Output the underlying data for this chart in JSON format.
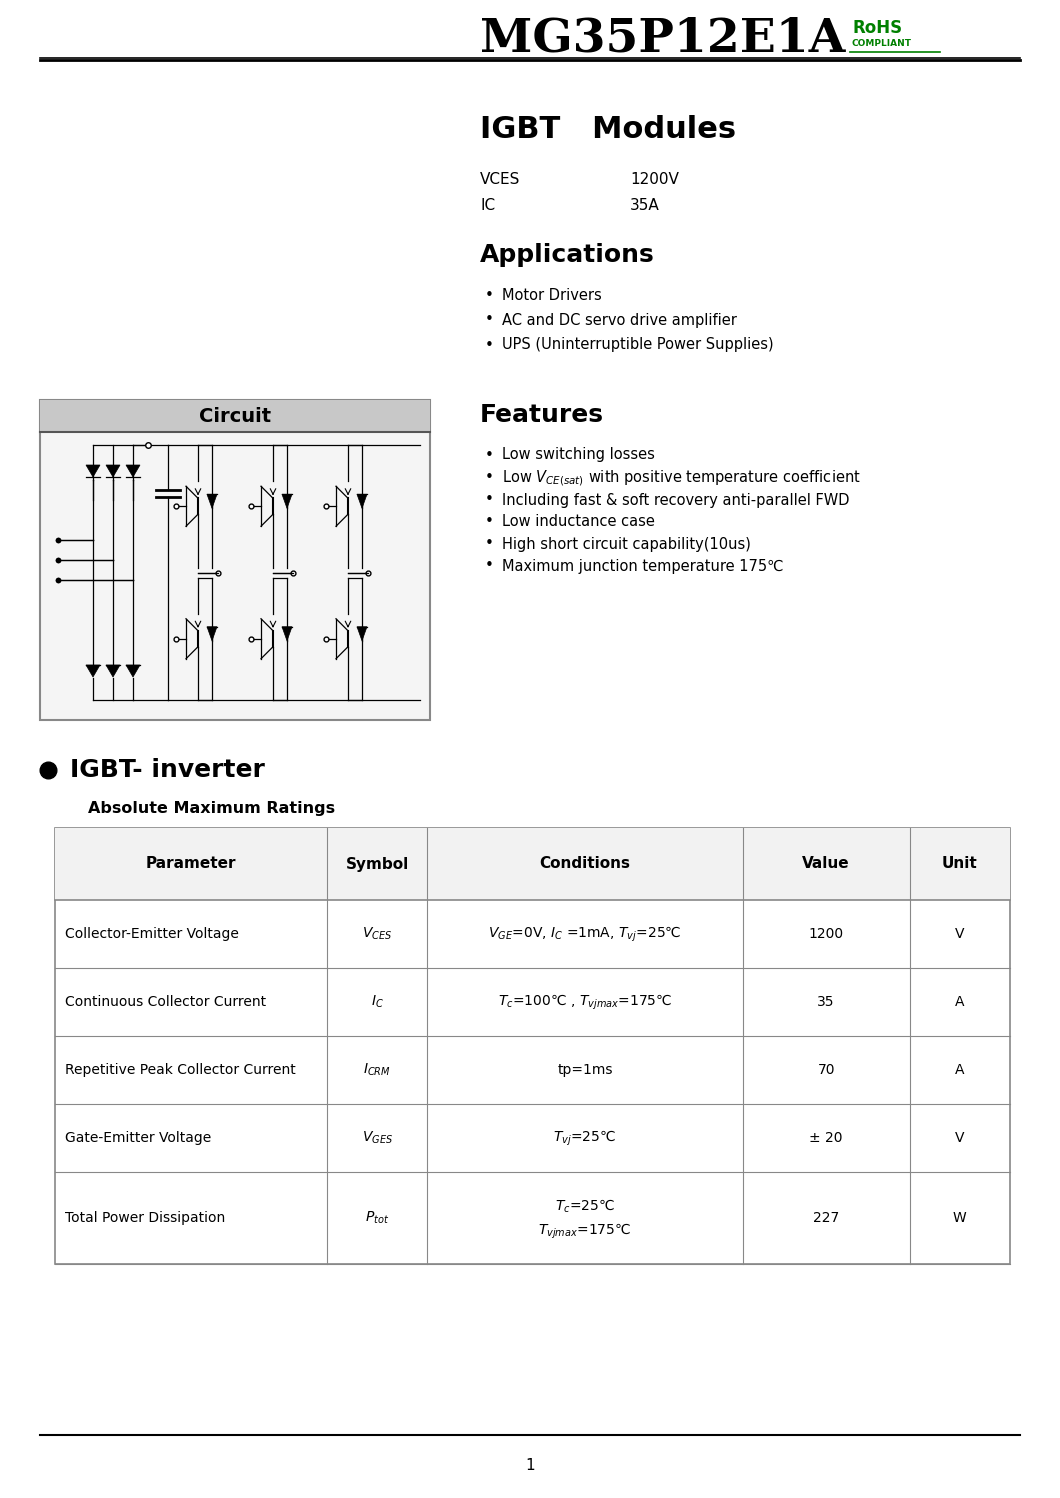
{
  "title": "MG35P12E1A",
  "rohs_color": "#008000",
  "section_title": "IGBT   Modules",
  "applications_title": "Applications",
  "applications": [
    "Motor Drivers",
    "AC and DC servo drive amplifier",
    "UPS (Uninterruptible Power Supplies)"
  ],
  "features_title": "Features",
  "circuit_title": "Circuit",
  "inverter_title": "IGBT- inverter",
  "table_subtitle": "Absolute Maximum Ratings",
  "table_headers": [
    "Parameter",
    "Symbol",
    "Conditions",
    "Value",
    "Unit"
  ],
  "page_number": "1",
  "bg_color": "#ffffff",
  "text_color": "#000000",
  "table_border_color": "#aaaaaa",
  "line_color": "#000000"
}
